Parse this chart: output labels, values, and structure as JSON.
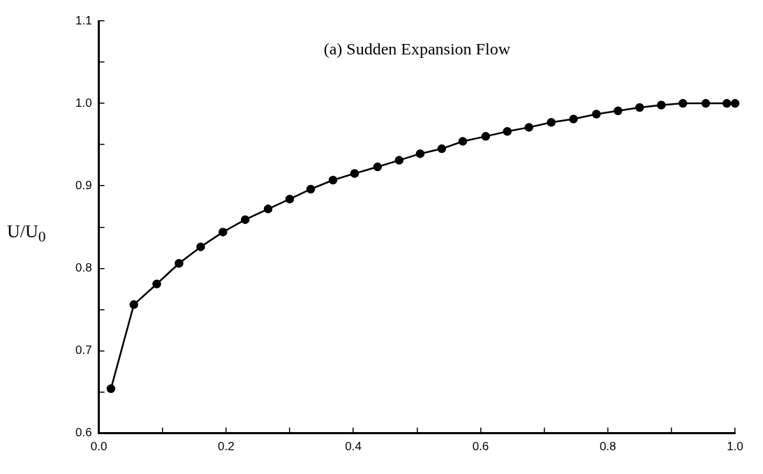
{
  "chart_data": {
    "type": "line",
    "title": "(a) Sudden Expansion Flow",
    "ylabel": "U/U$_{0}$",
    "x": [
      0.019,
      0.055,
      0.091,
      0.126,
      0.16,
      0.195,
      0.23,
      0.266,
      0.3,
      0.333,
      0.368,
      0.402,
      0.438,
      0.472,
      0.505,
      0.539,
      0.572,
      0.608,
      0.642,
      0.676,
      0.711,
      0.746,
      0.782,
      0.816,
      0.85,
      0.884,
      0.918,
      0.954,
      0.987,
      1.0
    ],
    "series": [
      {
        "color": "#000000",
        "values": [
          0.654,
          0.756,
          0.781,
          0.806,
          0.826,
          0.844,
          0.859,
          0.872,
          0.884,
          0.896,
          0.907,
          0.915,
          0.923,
          0.931,
          0.939,
          0.945,
          0.954,
          0.96,
          0.966,
          0.971,
          0.977,
          0.981,
          0.987,
          0.991,
          0.995,
          0.998,
          1.0,
          1.0,
          1.0,
          1.0
        ]
      }
    ],
    "xlim": [
      0,
      1
    ],
    "xticks": [
      {
        "value": 0,
        "label": "0.0"
      },
      {
        "value": 0.1,
        "label": null
      },
      {
        "value": 0.2,
        "label": "0.2"
      },
      {
        "value": 0.3,
        "label": null
      },
      {
        "value": 0.4,
        "label": "0.4"
      },
      {
        "value": 0.5,
        "label": null
      },
      {
        "value": 0.6,
        "label": "0.6"
      },
      {
        "value": 0.7,
        "label": null
      },
      {
        "value": 0.8,
        "label": "0.8"
      },
      {
        "value": 0.9,
        "label": null
      },
      {
        "value": 1,
        "label": "1.0"
      }
    ],
    "ylim": [
      0.6,
      1.1
    ],
    "yticks": [
      {
        "value": 0.6,
        "label": "0.6"
      },
      {
        "value": 0.65,
        "label": null
      },
      {
        "value": 0.7,
        "label": "0.7"
      },
      {
        "value": 0.75,
        "label": null
      },
      {
        "value": 0.8,
        "label": "0.8"
      },
      {
        "value": 0.85,
        "label": null
      },
      {
        "value": 0.9,
        "label": "0.9"
      },
      {
        "value": 0.95,
        "label": null
      },
      {
        "value": 1.0,
        "label": "1.0"
      },
      {
        "value": 1.05,
        "label": null
      },
      {
        "value": 1.1,
        "label": "1.1"
      }
    ],
    "marker": "circle",
    "line_style": "solid",
    "grid": false,
    "legend": false
  }
}
